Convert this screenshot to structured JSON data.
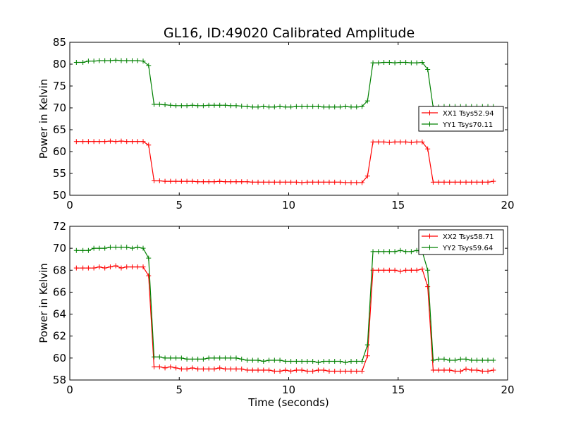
{
  "figure": {
    "title": "GL16, ID:49020 Calibrated Amplitude"
  },
  "chart_data": [
    {
      "type": "line",
      "title": "GL16, ID:49020 Calibrated Amplitude",
      "xlabel": "",
      "ylabel": "Power in Kelvin",
      "xlim": [
        0,
        20
      ],
      "ylim": [
        50,
        85
      ],
      "xticks": [
        0,
        5,
        10,
        15,
        20
      ],
      "yticks": [
        50,
        55,
        60,
        65,
        70,
        75,
        80,
        85
      ],
      "grid": false,
      "legend": "center-right",
      "x": [
        0.3,
        0.6,
        0.85,
        1.1,
        1.35,
        1.6,
        1.85,
        2.1,
        2.35,
        2.6,
        2.85,
        3.1,
        3.35,
        3.6,
        3.85,
        4.1,
        4.35,
        4.6,
        4.85,
        5.1,
        5.35,
        5.6,
        5.85,
        6.1,
        6.35,
        6.6,
        6.85,
        7.1,
        7.35,
        7.6,
        7.85,
        8.1,
        8.35,
        8.6,
        8.85,
        9.1,
        9.35,
        9.6,
        9.85,
        10.1,
        10.35,
        10.6,
        10.85,
        11.1,
        11.35,
        11.6,
        11.85,
        12.1,
        12.35,
        12.6,
        12.85,
        13.1,
        13.35,
        13.6,
        13.85,
        14.1,
        14.35,
        14.6,
        14.85,
        15.1,
        15.35,
        15.6,
        15.85,
        16.1,
        16.35,
        16.6,
        16.85,
        17.1,
        17.35,
        17.6,
        17.85,
        18.1,
        18.35,
        18.6,
        18.85,
        19.1,
        19.35
      ],
      "series": [
        {
          "name": "XX1 Tsys52.94",
          "color": "#ff0000",
          "values": [
            62.3,
            62.3,
            62.3,
            62.3,
            62.3,
            62.3,
            62.4,
            62.3,
            62.4,
            62.3,
            62.3,
            62.3,
            62.3,
            61.5,
            53.3,
            53.3,
            53.2,
            53.2,
            53.2,
            53.2,
            53.2,
            53.2,
            53.1,
            53.1,
            53.1,
            53.1,
            53.2,
            53.1,
            53.1,
            53.1,
            53.1,
            53.1,
            53.0,
            53.0,
            53.0,
            53.0,
            53.0,
            53.0,
            53.0,
            53.0,
            53.0,
            52.9,
            53.0,
            53.0,
            53.0,
            53.0,
            53.0,
            53.0,
            53.0,
            52.9,
            52.9,
            52.9,
            52.9,
            54.4,
            62.2,
            62.2,
            62.2,
            62.1,
            62.2,
            62.2,
            62.2,
            62.1,
            62.2,
            62.2,
            60.6,
            53.0,
            53.0,
            53.0,
            53.0,
            53.0,
            53.0,
            53.0,
            53.0,
            53.0,
            53.0,
            53.0,
            53.2
          ]
        },
        {
          "name": "YY1 Tsys70.11",
          "color": "#008000",
          "values": [
            80.4,
            80.4,
            80.7,
            80.7,
            80.8,
            80.8,
            80.8,
            80.9,
            80.8,
            80.8,
            80.8,
            80.8,
            80.7,
            79.7,
            70.8,
            70.8,
            70.7,
            70.6,
            70.5,
            70.5,
            70.5,
            70.6,
            70.5,
            70.5,
            70.6,
            70.6,
            70.6,
            70.6,
            70.5,
            70.5,
            70.4,
            70.3,
            70.2,
            70.2,
            70.3,
            70.2,
            70.2,
            70.3,
            70.2,
            70.2,
            70.3,
            70.3,
            70.3,
            70.3,
            70.3,
            70.2,
            70.2,
            70.2,
            70.2,
            70.3,
            70.2,
            70.2,
            70.3,
            71.6,
            80.3,
            80.3,
            80.4,
            80.4,
            80.3,
            80.4,
            80.4,
            80.3,
            80.3,
            80.4,
            78.8,
            70.1,
            70.2,
            70.3,
            70.3,
            70.3,
            70.3,
            70.3,
            70.3,
            70.3,
            70.3,
            70.3,
            70.3
          ]
        }
      ]
    },
    {
      "type": "line",
      "title": "",
      "xlabel": "Time (seconds)",
      "ylabel": "Power in Kelvin",
      "xlim": [
        0,
        20
      ],
      "ylim": [
        58,
        72
      ],
      "xticks": [
        0,
        5,
        10,
        15,
        20
      ],
      "yticks": [
        58,
        60,
        62,
        64,
        66,
        68,
        70,
        72
      ],
      "grid": false,
      "legend": "top-right",
      "x": [
        0.3,
        0.6,
        0.85,
        1.1,
        1.35,
        1.6,
        1.85,
        2.1,
        2.35,
        2.6,
        2.85,
        3.1,
        3.35,
        3.6,
        3.85,
        4.1,
        4.35,
        4.6,
        4.85,
        5.1,
        5.35,
        5.6,
        5.85,
        6.1,
        6.35,
        6.6,
        6.85,
        7.1,
        7.35,
        7.6,
        7.85,
        8.1,
        8.35,
        8.6,
        8.85,
        9.1,
        9.35,
        9.6,
        9.85,
        10.1,
        10.35,
        10.6,
        10.85,
        11.1,
        11.35,
        11.6,
        11.85,
        12.1,
        12.35,
        12.6,
        12.85,
        13.1,
        13.35,
        13.6,
        13.85,
        14.1,
        14.35,
        14.6,
        14.85,
        15.1,
        15.35,
        15.6,
        15.85,
        16.1,
        16.35,
        16.6,
        16.85,
        17.1,
        17.35,
        17.6,
        17.85,
        18.1,
        18.35,
        18.6,
        18.85,
        19.1,
        19.35
      ],
      "series": [
        {
          "name": "XX2 Tsys58.71",
          "color": "#ff0000",
          "values": [
            68.2,
            68.2,
            68.2,
            68.2,
            68.3,
            68.2,
            68.3,
            68.4,
            68.2,
            68.3,
            68.3,
            68.3,
            68.3,
            67.5,
            59.2,
            59.2,
            59.1,
            59.2,
            59.1,
            59.0,
            59.0,
            59.1,
            59.0,
            59.0,
            59.0,
            59.0,
            59.1,
            59.0,
            59.0,
            59.0,
            59.0,
            58.9,
            58.9,
            58.9,
            58.9,
            58.9,
            58.8,
            58.8,
            58.9,
            58.8,
            58.9,
            58.9,
            58.8,
            58.8,
            58.9,
            58.9,
            58.8,
            58.8,
            58.8,
            58.8,
            58.8,
            58.8,
            58.8,
            60.2,
            68.0,
            68.0,
            68.0,
            68.0,
            68.0,
            67.9,
            68.0,
            68.0,
            68.0,
            68.1,
            66.5,
            58.9,
            58.9,
            58.9,
            58.9,
            58.8,
            58.8,
            59.0,
            58.9,
            58.9,
            58.8,
            58.8,
            58.9
          ]
        },
        {
          "name": "YY2 Tsys59.64",
          "color": "#008000",
          "values": [
            69.8,
            69.8,
            69.8,
            70.0,
            70.0,
            70.0,
            70.1,
            70.1,
            70.1,
            70.1,
            70.0,
            70.1,
            70.0,
            69.1,
            60.1,
            60.1,
            60.0,
            60.0,
            60.0,
            60.0,
            59.9,
            59.9,
            59.9,
            59.9,
            60.0,
            60.0,
            60.0,
            60.0,
            60.0,
            60.0,
            59.9,
            59.8,
            59.8,
            59.8,
            59.7,
            59.8,
            59.8,
            59.8,
            59.7,
            59.7,
            59.7,
            59.7,
            59.7,
            59.7,
            59.6,
            59.7,
            59.7,
            59.7,
            59.7,
            59.6,
            59.7,
            59.7,
            59.7,
            61.2,
            69.7,
            69.7,
            69.7,
            69.7,
            69.7,
            69.8,
            69.7,
            69.7,
            69.8,
            69.7,
            68.0,
            59.8,
            59.9,
            59.9,
            59.8,
            59.8,
            59.9,
            59.9,
            59.8,
            59.8,
            59.8,
            59.8,
            59.8
          ]
        }
      ]
    }
  ]
}
